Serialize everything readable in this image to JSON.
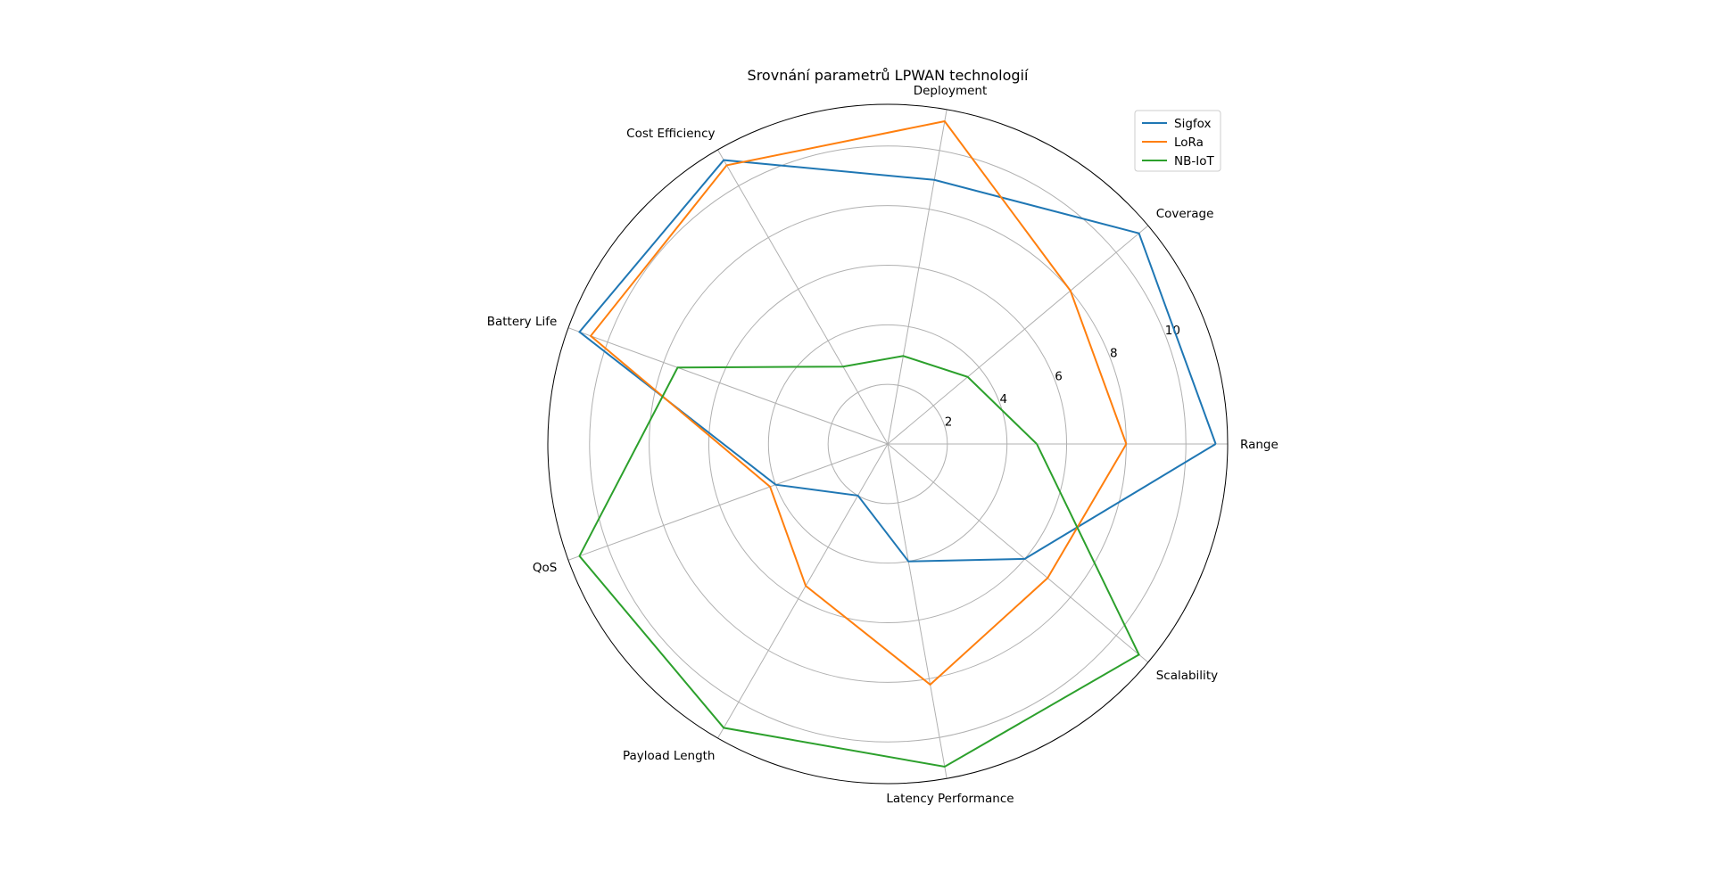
{
  "chart_data": {
    "type": "radar",
    "title": "Srovnání parametrů LPWAN technologií",
    "categories": [
      "Range",
      "Coverage",
      "Deployment",
      "Cost Efficiency",
      "Battery Life",
      "QoS",
      "Payload Length",
      "Latency Performance",
      "Scalability"
    ],
    "rlim": [
      0,
      11.4
    ],
    "radial_ticks": [
      2,
      4,
      6,
      8,
      10
    ],
    "radial_tick_labels": [
      "2",
      "4",
      "6",
      "8",
      "10"
    ],
    "grid": true,
    "legend_position": "top-right",
    "series": [
      {
        "name": "Sigfox",
        "color": "#1f77b4",
        "values": [
          11,
          11,
          9,
          11,
          11,
          4,
          2,
          4,
          6
        ]
      },
      {
        "name": "LoRa",
        "color": "#ff7f0e",
        "values": [
          8,
          8,
          11,
          10.8,
          10.6,
          4.2,
          5.5,
          8.2,
          7
        ]
      },
      {
        "name": "NB-IoT",
        "color": "#2ca02c",
        "values": [
          5,
          3.5,
          3,
          3,
          7.5,
          11,
          11,
          11,
          11
        ]
      }
    ]
  }
}
